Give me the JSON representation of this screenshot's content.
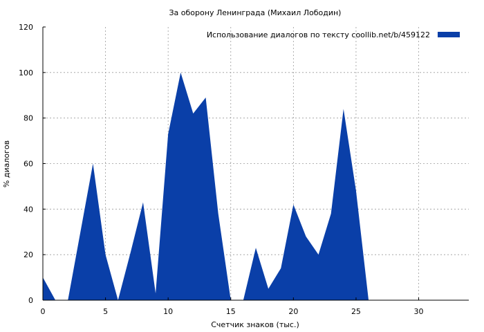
{
  "chart_data": {
    "type": "area",
    "title": "За оборону Ленинграда (Михаил Лободин)",
    "xlabel": "Счетчик знаков (тыс.)",
    "ylabel": "% диалогов",
    "xlim": [
      0,
      34
    ],
    "ylim": [
      0,
      120
    ],
    "xticks": [
      0,
      5,
      10,
      15,
      20,
      25,
      30
    ],
    "yticks": [
      0,
      20,
      40,
      60,
      80,
      100,
      120
    ],
    "grid": true,
    "legend_position": "top-right",
    "series": [
      {
        "name": "Использование диалогов по тексту  coollib.net/b/459122",
        "color": "#0a3fa8",
        "x": [
          0,
          1,
          2,
          3,
          4,
          5,
          6,
          7,
          8,
          9,
          10,
          11,
          12,
          13,
          14,
          15,
          16,
          17,
          18,
          19,
          20,
          21,
          22,
          23,
          24,
          25,
          26,
          27,
          28,
          29,
          30,
          31,
          32,
          33
        ],
        "y": [
          10,
          0,
          0,
          30,
          60,
          20,
          0,
          21,
          43,
          3,
          73,
          100,
          82,
          89,
          38,
          0,
          0,
          23,
          5,
          14,
          42,
          28,
          20,
          38,
          84,
          48,
          0,
          0,
          0,
          0,
          0,
          0,
          0,
          0
        ]
      }
    ]
  }
}
